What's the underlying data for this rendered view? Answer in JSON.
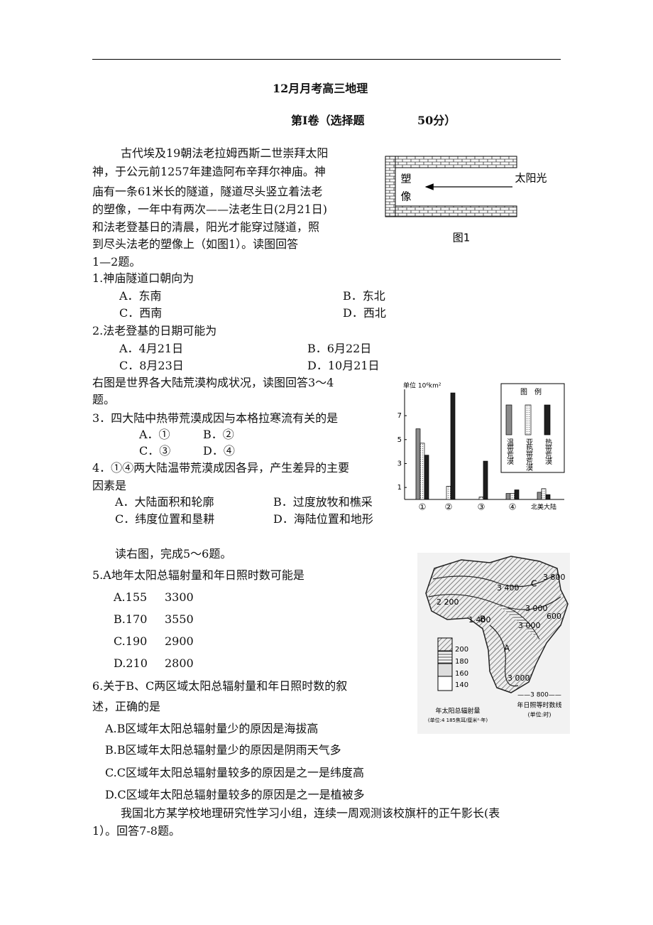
{
  "header": {
    "title": "12月月考高三地理",
    "section": "第Ⅰ卷（选择题",
    "score": "50分）"
  },
  "passage1": [
    "古代埃及19朝法老拉姆西斯二世崇拜太阳",
    "神，于公元前1257年建造阿布辛拜尔神庙。神",
    "庙有一条61米长的隧道，隧道尽头竖立着法老",
    "的塑像，一年中有两次——法老生日(2月21日)",
    "和法老登基日的清晨，阳光才能穿过隧道，照",
    "到尽头法老的塑像上（如图1）。读图回答",
    "1—2题。"
  ],
  "figure1": {
    "statue": [
      "塑",
      "像"
    ],
    "sunlight": "太阳光",
    "caption": "图1"
  },
  "q1": {
    "stem": "1.神庙隧道口朝向为",
    "options": [
      "A．东南",
      "B．东北",
      "C．西南",
      "D．西北"
    ]
  },
  "q2": {
    "stem": "2.法老登基的日期可能为",
    "options": [
      "A．4月21日",
      "B．6月22日",
      "C．8月23日",
      "D．10月21日"
    ]
  },
  "intro34": [
    "右图是世界各大陆荒漠构成状况，读图回答3～4",
    "题。"
  ],
  "q3": {
    "stem": "3．四大陆中热带荒漠成因与本格拉寒流有关的是",
    "options": [
      "A．①",
      "B．②",
      "C．③",
      "D．④"
    ]
  },
  "q4": {
    "stem": [
      "4．①④两大陆温带荒漠成因各异，产生差异的主要",
      "因素是"
    ],
    "options": [
      "A．大陆面积和轮廓",
      "B．过度放牧和樵采",
      "C．纬度位置和垦耕",
      "D．海陆位置和地形"
    ]
  },
  "chart_data": {
    "type": "bar",
    "ylabel": "单位 10⁶km²",
    "legend_title": "图　例",
    "categories": [
      "①",
      "②",
      "③",
      "④",
      "北美大陆"
    ],
    "series": [
      {
        "name": "温带荒漠",
        "color": "#8a8a8a",
        "values": [
          5.9,
          0,
          0,
          0.5,
          0.6
        ]
      },
      {
        "name": "亚热带荒漠",
        "color": "#e6e6e6",
        "values": [
          4.7,
          1.1,
          0.2,
          0.5,
          0.9
        ]
      },
      {
        "name": "热带荒漠",
        "color": "#1e1e1e",
        "values": [
          3.7,
          8.9,
          3.2,
          0.8,
          0.4
        ]
      }
    ],
    "ylim": [
      0,
      9.2
    ],
    "yticks": [
      1,
      3,
      5,
      7
    ],
    "grid": false
  },
  "intro56": "读右图，完成5～6题。",
  "q5": {
    "stem": "5.A地年太阳总辐射量和年日照时数可能是",
    "options": [
      [
        "A.155",
        "3300"
      ],
      [
        "B.170",
        "3550"
      ],
      [
        "C.190",
        "2900"
      ],
      [
        "D.210",
        "2800"
      ]
    ]
  },
  "q6": {
    "stem": [
      "6.关于B、C两区域太阳总辐射量和年日照时数的叙",
      "述，正确的是"
    ],
    "options": [
      "A.B区域年太阳总辐射量少的原因是海拔高",
      "B.B区域年太阳总辐射量少的原因是阴雨天气多",
      "C.C区域年太阳总辐射量较多的原因是之一是纬度高",
      "D.C区域年太阳总辐射量较多的原因是之一是植被多"
    ]
  },
  "map": {
    "isolines": [
      "3 400",
      "2 200",
      "3 000",
      "1 400",
      "3 800",
      "3 000",
      "600",
      "3 000"
    ],
    "regions": [
      "C",
      "B",
      "A"
    ],
    "legend": [
      "200",
      "180",
      "160",
      "140"
    ],
    "legend_title": "年太阳总辐射量",
    "legend_unit": "(单位:4 185焦耳/厘米²·年)",
    "isoline_sample": "——3 800——",
    "isoline_title": "年日照等时数线",
    "isoline_unit": "(单位:时)"
  },
  "passage7": [
    "我国北方某学校地理研究性学习小组，连续一周观测该校旗杆的正午影长(表",
    "1）。回答7-8题。"
  ]
}
